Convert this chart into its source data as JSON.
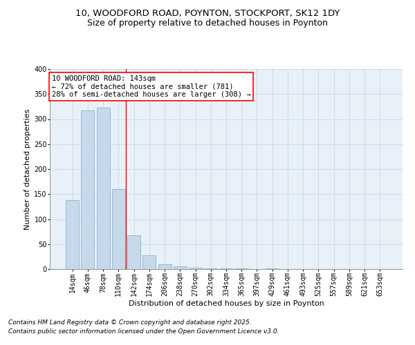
{
  "title1": "10, WOODFORD ROAD, POYNTON, STOCKPORT, SK12 1DY",
  "title2": "Size of property relative to detached houses in Poynton",
  "xlabel": "Distribution of detached houses by size in Poynton",
  "ylabel": "Number of detached properties",
  "categories": [
    "14sqm",
    "46sqm",
    "78sqm",
    "110sqm",
    "142sqm",
    "174sqm",
    "206sqm",
    "238sqm",
    "270sqm",
    "302sqm",
    "334sqm",
    "365sqm",
    "397sqm",
    "429sqm",
    "461sqm",
    "493sqm",
    "525sqm",
    "557sqm",
    "589sqm",
    "621sqm",
    "653sqm"
  ],
  "values": [
    138,
    317,
    323,
    160,
    68,
    28,
    10,
    5,
    3,
    2,
    1,
    1,
    0,
    1,
    0,
    0,
    0,
    0,
    0,
    0,
    0
  ],
  "bar_color": "#c6d9ea",
  "bar_edge_color": "#7aaac8",
  "annotation_box_text": "10 WOODFORD ROAD: 143sqm\n← 72% of detached houses are smaller (781)\n28% of semi-detached houses are larger (308) →",
  "annotation_box_color": "white",
  "annotation_box_edge": "red",
  "vline_x": 3.5,
  "vline_color": "red",
  "ylim": [
    0,
    400
  ],
  "yticks": [
    0,
    50,
    100,
    150,
    200,
    250,
    300,
    350,
    400
  ],
  "grid_color": "#c8d8e8",
  "bg_color": "#e8f0f8",
  "footnote1": "Contains HM Land Registry data © Crown copyright and database right 2025.",
  "footnote2": "Contains public sector information licensed under the Open Government Licence v3.0.",
  "title_fontsize": 9.5,
  "subtitle_fontsize": 9,
  "axis_label_fontsize": 8,
  "tick_fontsize": 7,
  "annotation_fontsize": 7.5,
  "footnote_fontsize": 6.5
}
